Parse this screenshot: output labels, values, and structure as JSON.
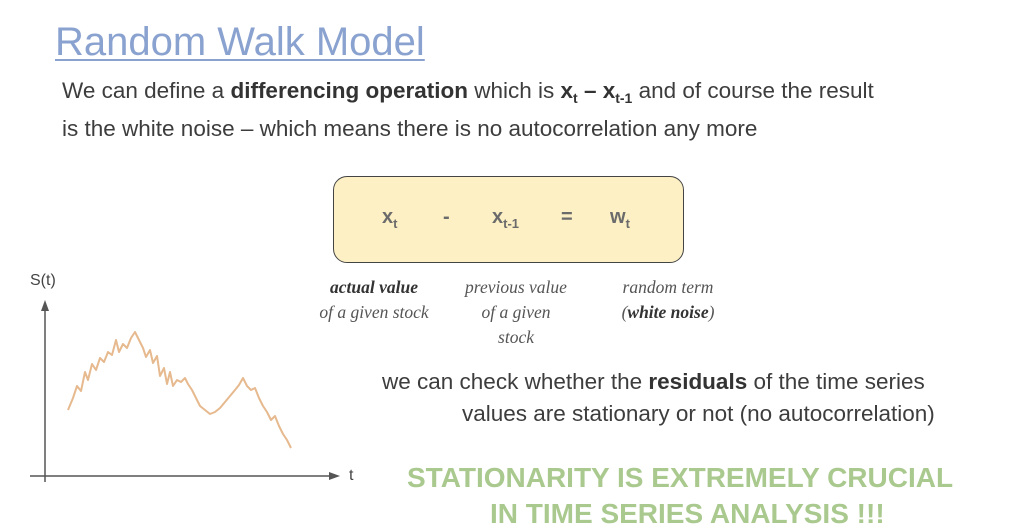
{
  "slide": {
    "title": "Random Walk Model",
    "intro": {
      "line1": {
        "a": "We can define a ",
        "b_bold": "differencing operation",
        "c": " which is ",
        "x1": "x",
        "x1_sub": "t",
        "dash": " – ",
        "x2": "x",
        "x2_sub": "t-1",
        "d": " and of course the result"
      },
      "line2": "is the white noise – which means there is no autocorrelation any more"
    },
    "equation": {
      "x": "x",
      "x_sub": "t",
      "minus": "-",
      "xprev": "x",
      "xprev_sub": "t-1",
      "equals": "=",
      "w": "w",
      "w_sub": "t"
    },
    "captions": {
      "actual_l1": "actual value",
      "actual_l2": "of a given stock",
      "prev_l1": "previous value",
      "prev_l2": "of a given",
      "prev_l3": "stock",
      "random_l1": "random term",
      "random_open": "(",
      "random_bold": "white noise",
      "random_close": ")"
    },
    "residuals": {
      "line1_a": "we can check whether the ",
      "line1_bold": "residuals",
      "line1_b": " of the time series",
      "line2": "values are stationary or not (no autocorrelation)"
    },
    "highlight": {
      "line1": "STATIONARITY IS EXTREMELY CRUCIAL",
      "line2": "IN TIME SERIES ANALYSIS !!!"
    },
    "graph": {
      "y_label": "S(t)",
      "x_label": "t"
    }
  },
  "colors": {
    "title": "#8aa2cf",
    "box_fill": "#fdf0c4",
    "walk_line": "#e6b98e",
    "highlight": "#a9c98e"
  }
}
